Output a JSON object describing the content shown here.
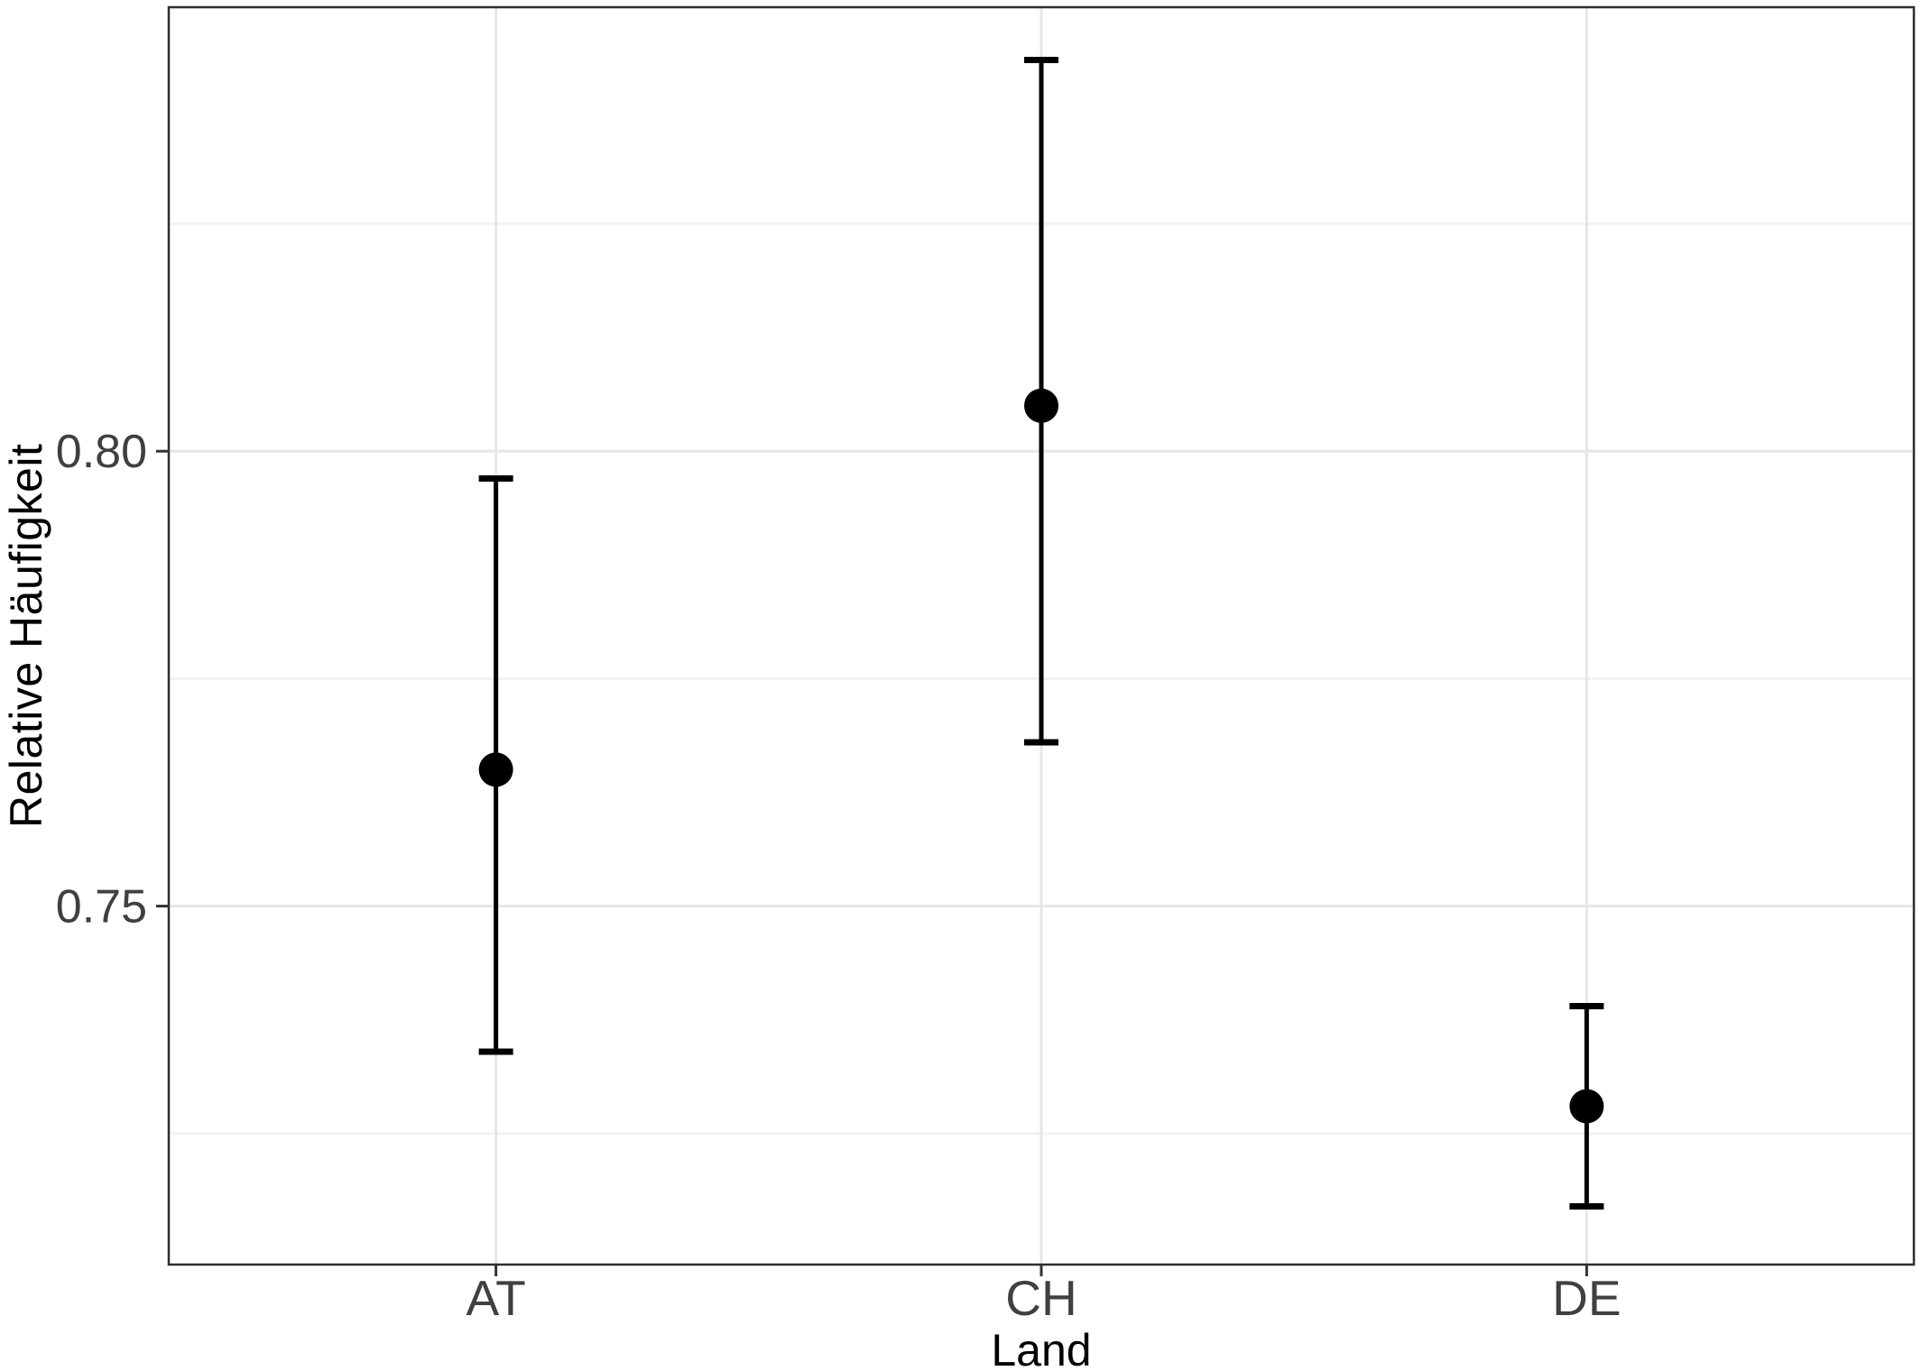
{
  "figure": {
    "background_color": "#ffffff",
    "panel_border_color": "#2e2e2e",
    "grid_major_color": "#e6e6e6",
    "grid_minor_color": "#f2f2f2",
    "tick_mark_color": "#333333",
    "tick_label_color": "#404040",
    "axis_title_color": "#000000",
    "point_color": "#000000"
  },
  "chart_data": {
    "type": "pointrange",
    "title": "",
    "xlabel": "Land",
    "ylabel": "Relative Häufigkeit",
    "categories": [
      "AT",
      "CH",
      "DE"
    ],
    "series": [
      {
        "name": "Relative Häufigkeit",
        "values": [
          0.765,
          0.805,
          0.728
        ],
        "ci_low": [
          0.734,
          0.768,
          0.717
        ],
        "ci_high": [
          0.797,
          0.843,
          0.739
        ]
      }
    ],
    "y_ticks": [
      0.75,
      0.8
    ],
    "y_tick_labels": [
      "0.75",
      "0.80"
    ],
    "y_minor_ticks": [
      0.725,
      0.775,
      0.825
    ],
    "ylim": [
      0.7106,
      0.8488
    ],
    "grid": true,
    "legend": "none"
  }
}
